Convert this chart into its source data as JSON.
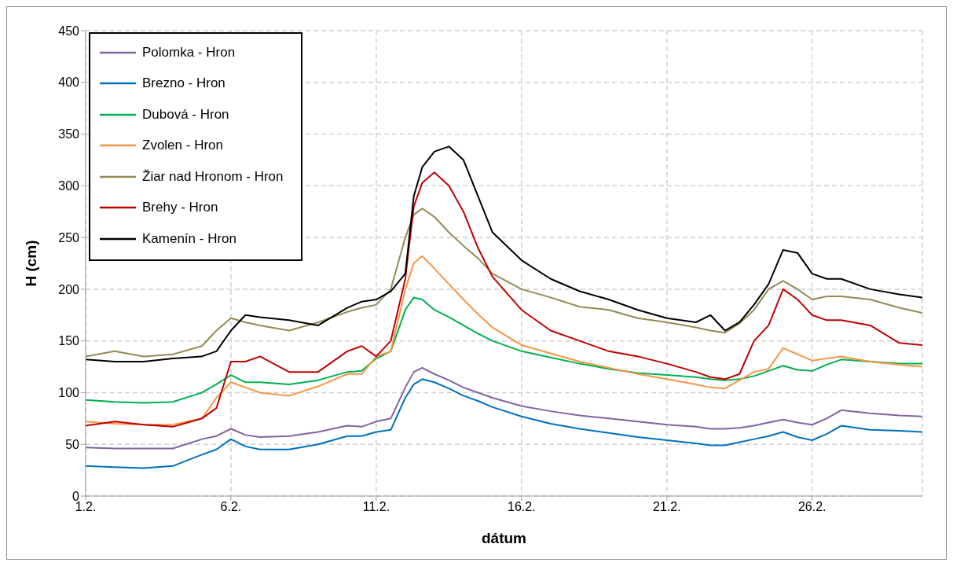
{
  "chart_data": {
    "type": "line",
    "xlabel": "dátum",
    "ylabel": "H (cm)",
    "x": [
      "--02-01",
      "--02-02",
      "--02-03",
      "--02-04",
      "--02-05",
      "--02-05T12:00",
      "--02-06",
      "--02-06T12:00",
      "--02-07",
      "--02-08",
      "--02-09",
      "--02-10",
      "--02-10T12:00",
      "--02-11",
      "--02-11T12:00",
      "--02-12",
      "--02-12T07:00",
      "--02-12T14:00",
      "--02-13",
      "--02-13T12:00",
      "--02-14",
      "--02-14T12:00",
      "--02-15",
      "--02-16",
      "--02-17",
      "--02-18",
      "--02-19",
      "--02-20",
      "--02-21",
      "--02-22",
      "--02-22T12:00",
      "--02-23",
      "--02-23T12:00",
      "--02-24",
      "--02-24T12:00",
      "--02-25",
      "--02-25T12:00",
      "--02-26",
      "--02-26T12:00",
      "--02-27",
      "--02-28",
      "--03-01",
      "--03-01T19:00"
    ],
    "series": [
      {
        "name": "Polomka - Hron",
        "color": "#8064a2",
        "values": [
          47,
          46,
          46,
          46,
          55,
          58,
          65,
          59,
          57,
          58,
          62,
          68,
          67,
          72,
          75,
          105,
          120,
          124,
          118,
          112,
          105,
          100,
          95,
          87,
          82,
          78,
          75,
          72,
          69,
          67,
          65,
          65,
          66,
          68,
          71,
          74,
          71,
          69,
          75,
          83,
          80,
          78,
          77
        ]
      },
      {
        "name": "Brezno - Hron",
        "color": "#0070c0",
        "values": [
          29,
          28,
          27,
          29,
          40,
          45,
          55,
          48,
          45,
          45,
          50,
          58,
          58,
          62,
          64,
          95,
          108,
          113,
          110,
          104,
          97,
          92,
          86,
          77,
          70,
          65,
          61,
          57,
          54,
          51,
          49,
          49,
          52,
          55,
          58,
          62,
          57,
          54,
          60,
          68,
          64,
          63,
          62
        ]
      },
      {
        "name": "Dubová - Hron",
        "color": "#00b050",
        "values": [
          93,
          91,
          90,
          91,
          100,
          108,
          117,
          110,
          110,
          108,
          112,
          120,
          121,
          133,
          140,
          180,
          192,
          190,
          180,
          173,
          165,
          157,
          150,
          140,
          134,
          128,
          123,
          119,
          117,
          115,
          113,
          112,
          113,
          116,
          121,
          126,
          122,
          121,
          127,
          132,
          130,
          128,
          128
        ]
      },
      {
        "name": "Zvolen - Hron",
        "color": "#f79646",
        "values": [
          72,
          70,
          69,
          69,
          75,
          95,
          110,
          105,
          100,
          97,
          106,
          118,
          118,
          135,
          140,
          200,
          225,
          232,
          220,
          205,
          190,
          176,
          163,
          146,
          138,
          130,
          124,
          118,
          113,
          108,
          105,
          104,
          112,
          120,
          123,
          143,
          137,
          131,
          133,
          135,
          130,
          127,
          125
        ]
      },
      {
        "name": "Žiar nad Hronom - Hron",
        "color": "#948a54",
        "values": [
          135,
          140,
          135,
          137,
          145,
          160,
          172,
          168,
          165,
          160,
          168,
          178,
          182,
          185,
          200,
          250,
          272,
          278,
          270,
          255,
          242,
          230,
          215,
          200,
          192,
          183,
          180,
          172,
          168,
          163,
          160,
          158,
          167,
          180,
          200,
          208,
          200,
          190,
          193,
          193,
          190,
          182,
          177
        ]
      },
      {
        "name": "Brehy - Hron",
        "color": "#c00000",
        "values": [
          68,
          72,
          69,
          67,
          75,
          85,
          130,
          130,
          135,
          120,
          120,
          140,
          145,
          135,
          150,
          210,
          280,
          303,
          313,
          300,
          275,
          240,
          212,
          180,
          160,
          150,
          140,
          135,
          128,
          120,
          115,
          113,
          118,
          150,
          165,
          200,
          190,
          175,
          170,
          170,
          165,
          148,
          146
        ]
      },
      {
        "name": "Kamenín - Hron",
        "color": "#000000",
        "values": [
          132,
          130,
          130,
          133,
          135,
          140,
          160,
          175,
          173,
          170,
          165,
          182,
          188,
          190,
          198,
          215,
          290,
          318,
          333,
          338,
          325,
          290,
          255,
          228,
          210,
          198,
          190,
          180,
          172,
          168,
          175,
          160,
          168,
          185,
          205,
          238,
          235,
          215,
          210,
          210,
          200,
          195,
          192
        ]
      }
    ],
    "xlim": [
      "--02-01",
      "--03-01T19:00"
    ],
    "xticks": [
      {
        "value": "--02-01",
        "label": "1.2."
      },
      {
        "value": "--02-06",
        "label": "6.2."
      },
      {
        "value": "--02-11",
        "label": "11.2."
      },
      {
        "value": "--02-16",
        "label": "16.2."
      },
      {
        "value": "--02-21",
        "label": "21.2."
      },
      {
        "value": "--02-26",
        "label": "26.2."
      }
    ],
    "ylim": [
      0,
      450
    ],
    "yticks": [
      0,
      50,
      100,
      150,
      200,
      250,
      300,
      350,
      400,
      450
    ],
    "grid": true,
    "legend": "top left",
    "marker": "none",
    "line_style": "solid"
  }
}
